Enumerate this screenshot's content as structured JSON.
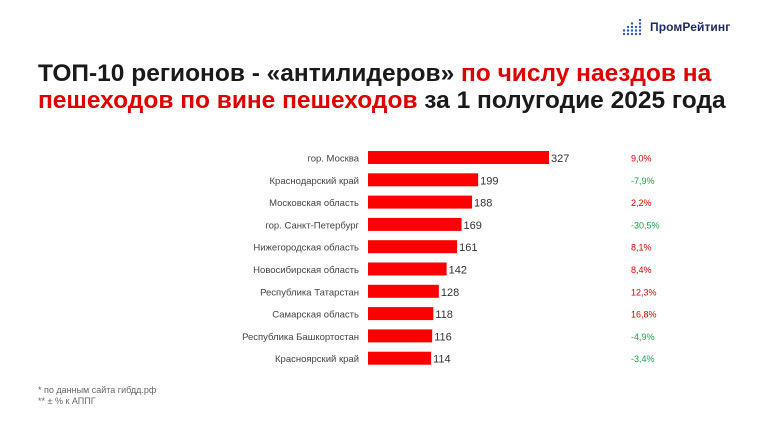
{
  "logo": {
    "text": "ПромРейтинг"
  },
  "title": {
    "part1": "ТОП-10 регионов - «антилидеров» ",
    "part2": "по числу наездов на пешеходов по вине пешеходов",
    "part3": " за 1 полугодие 2025 года"
  },
  "chart_data": {
    "type": "bar",
    "orientation": "horizontal",
    "categories": [
      "гор. Москва",
      "Краснодарский край",
      "Московская область",
      "гор. Санкт-Петербург",
      "Нижегородская область",
      "Новосибирская область",
      "Республика Татарстан",
      "Самарская область",
      "Республика Башкортостан",
      "Красноярский край"
    ],
    "values": [
      327,
      199,
      188,
      169,
      161,
      142,
      128,
      118,
      116,
      114
    ],
    "value_labels": [
      "327",
      "199",
      "188",
      "169",
      "161",
      "142",
      "128",
      "118",
      "116",
      "114"
    ],
    "changes": [
      "9,0%",
      "-7,9%",
      "2,2%",
      "-30,5%",
      "8,1%",
      "8,4%",
      "12,3%",
      "16,8%",
      "-4,9%",
      "-3,4%"
    ],
    "change_signs": [
      1,
      -1,
      1,
      -1,
      1,
      1,
      1,
      1,
      -1,
      -1
    ],
    "xlim": [
      0,
      327
    ],
    "grid": false,
    "colors": {
      "bar": "#ff0000",
      "positive": "#e00000",
      "negative": "#17a34a"
    }
  },
  "footnotes": [
    "* по данным сайта гибдд.рф",
    "** ± % к АППГ"
  ]
}
